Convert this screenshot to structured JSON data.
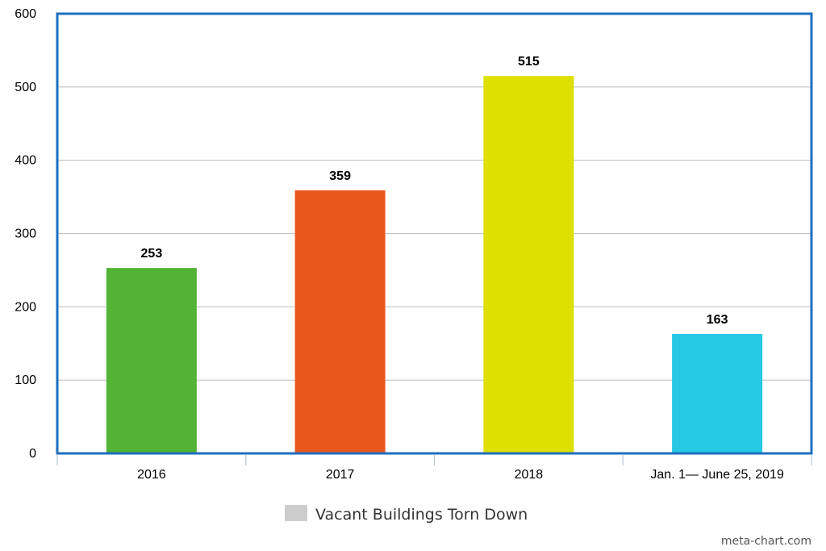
{
  "chart_data": {
    "type": "bar",
    "categories": [
      "2016",
      "2017",
      "2018",
      "Jan. 1— June 25, 2019"
    ],
    "series": [
      {
        "name": "Vacant Buildings Torn Down",
        "values": [
          253,
          359,
          515,
          163
        ],
        "colors": [
          "#52b335",
          "#ea571c",
          "#dde000",
          "#25c9e3"
        ]
      }
    ],
    "ylim": [
      0,
      600
    ],
    "yticks": [
      0,
      100,
      200,
      300,
      400,
      500,
      600
    ],
    "title": "",
    "xlabel": "",
    "ylabel": "",
    "grid": true,
    "legend_position": "bottom-center",
    "legend_swatch_color": "#cccccc",
    "frame_color": "#1f6fbf",
    "gridline_color": "#c0c4c8"
  },
  "credit": "meta-chart.com"
}
